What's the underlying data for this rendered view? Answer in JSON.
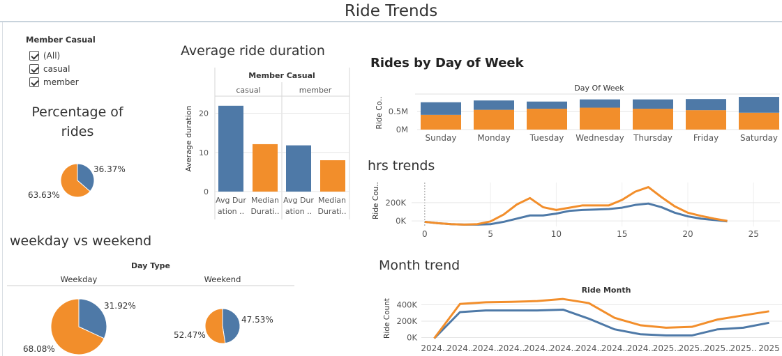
{
  "dashboard": {
    "title": "Ride Trends"
  },
  "colors": {
    "member": "#4e79a7",
    "casual": "#f28e2b",
    "grid": "#e6e6e6",
    "axis": "#555555"
  },
  "filter": {
    "title": "Member Casual",
    "options": [
      {
        "label": "(All)",
        "checked": true
      },
      {
        "label": "casual",
        "checked": true
      },
      {
        "label": "member",
        "checked": true
      }
    ]
  },
  "sheets": {
    "percentage": {
      "title_line1": "Percentage of",
      "title_line2": "rides"
    },
    "weekday_weekend": {
      "title": "weekday vs weekend"
    },
    "avg_duration": {
      "title": "Average ride duration"
    },
    "day_of_week": {
      "title": "Rides by Day of Week"
    },
    "hrs": {
      "title": "hrs trends"
    },
    "month": {
      "title": "Month trend"
    }
  },
  "chart_data": [
    {
      "id": "pct_rides",
      "type": "pie",
      "title": "Percentage of rides",
      "slices": [
        {
          "name": "member",
          "value": 36.37,
          "label": "36.37%"
        },
        {
          "name": "casual",
          "value": 63.63,
          "label": "63.63%"
        }
      ]
    },
    {
      "id": "weekday_weekend",
      "type": "pie",
      "title": "weekday vs weekend",
      "header": "Day Type",
      "panels": [
        {
          "name": "Weekday",
          "slices": [
            {
              "name": "member",
              "value": 31.92,
              "label": "31.92%"
            },
            {
              "name": "casual",
              "value": 68.08,
              "label": "68.08%"
            }
          ]
        },
        {
          "name": "Weekend",
          "slices": [
            {
              "name": "member",
              "value": 47.53,
              "label": "47.53%"
            },
            {
              "name": "casual",
              "value": 52.47,
              "label": "52.47%"
            }
          ]
        }
      ]
    },
    {
      "id": "avg_duration",
      "type": "bar",
      "title": "Average ride duration",
      "header": "Member Casual",
      "ylabel": "Average duration",
      "ylim": [
        0,
        24
      ],
      "yticks": [
        0,
        10,
        20
      ],
      "groups": [
        {
          "name": "casual",
          "bars": [
            {
              "label_line1": "Avg Dur",
              "label_line2": "ation ..",
              "value": 21.9,
              "color_key": "member"
            },
            {
              "label_line1": "Median",
              "label_line2": "Durati..",
              "value": 12.1,
              "color_key": "casual"
            }
          ]
        },
        {
          "name": "member",
          "bars": [
            {
              "label_line1": "Avg Dur",
              "label_line2": "ation ..",
              "value": 11.8,
              "color_key": "member"
            },
            {
              "label_line1": "Median",
              "label_line2": "Durati..",
              "value": 8.0,
              "color_key": "casual"
            }
          ]
        }
      ]
    },
    {
      "id": "day_of_week",
      "type": "bar",
      "title": "Rides by Day of Week",
      "header": "Day Of Week",
      "ylabel": "Ride Co..",
      "ylim": [
        0,
        0.95
      ],
      "yticks": [
        0,
        0.5
      ],
      "ytick_labels": [
        "0M",
        "0.5M"
      ],
      "categories": [
        "Sunday",
        "Monday",
        "Tuesday",
        "Wednesday",
        "Thursday",
        "Friday",
        "Saturday"
      ],
      "series": [
        {
          "name": "casual",
          "values": [
            0.41,
            0.55,
            0.58,
            0.61,
            0.58,
            0.54,
            0.47
          ]
        },
        {
          "name": "member",
          "values": [
            0.35,
            0.26,
            0.2,
            0.23,
            0.26,
            0.31,
            0.44
          ]
        }
      ]
    },
    {
      "id": "hrs_trends",
      "type": "line",
      "title": "hrs trends",
      "ylabel": "Ride Cou..",
      "xlim": [
        -1,
        27
      ],
      "ylim": [
        -60000,
        420000
      ],
      "xticks": [
        0,
        5,
        10,
        15,
        20,
        25
      ],
      "yticks": [
        0,
        200000
      ],
      "ytick_labels": [
        "0K",
        "200K"
      ],
      "series": [
        {
          "name": "casual",
          "x": [
            0,
            1,
            2,
            3,
            4,
            5,
            6,
            7,
            8,
            9,
            10,
            11,
            12,
            13,
            14,
            15,
            16,
            17,
            18,
            19,
            20,
            21,
            22,
            23
          ],
          "y": [
            -10000,
            -25000,
            -35000,
            -40000,
            -35000,
            -5000,
            70000,
            180000,
            250000,
            150000,
            120000,
            145000,
            170000,
            170000,
            170000,
            230000,
            320000,
            370000,
            260000,
            160000,
            90000,
            55000,
            25000,
            0
          ]
        },
        {
          "name": "member",
          "x": [
            0,
            1,
            2,
            3,
            4,
            5,
            6,
            7,
            8,
            9,
            10,
            11,
            12,
            13,
            14,
            15,
            16,
            17,
            18,
            19,
            20,
            21,
            22,
            23
          ],
          "y": [
            -10000,
            -25000,
            -35000,
            -40000,
            -40000,
            -35000,
            -10000,
            25000,
            60000,
            60000,
            80000,
            110000,
            120000,
            125000,
            130000,
            145000,
            175000,
            190000,
            150000,
            90000,
            50000,
            25000,
            10000,
            -5000
          ]
        }
      ]
    },
    {
      "id": "month_trend",
      "type": "line",
      "title": "Month trend",
      "header": "Ride Month",
      "ylabel": "Ride Count",
      "ylim": [
        -30000,
        480000
      ],
      "yticks": [
        0,
        200000,
        400000
      ],
      "ytick_labels": [
        "0K",
        "200K",
        "400K"
      ],
      "categories": [
        "2024..",
        "2024..",
        "2024..",
        "2024..",
        "2024..",
        "2024..",
        "2024..",
        "2024..",
        "2024..",
        "2025..",
        "2025..",
        "2025..",
        "2025..",
        "2025"
      ],
      "series": [
        {
          "name": "casual",
          "values": [
            -10000,
            410000,
            430000,
            435000,
            445000,
            470000,
            420000,
            240000,
            150000,
            120000,
            130000,
            220000,
            270000,
            320000
          ]
        },
        {
          "name": "member",
          "values": [
            -10000,
            310000,
            330000,
            330000,
            330000,
            340000,
            230000,
            100000,
            40000,
            25000,
            25000,
            100000,
            120000,
            180000
          ]
        }
      ]
    }
  ]
}
